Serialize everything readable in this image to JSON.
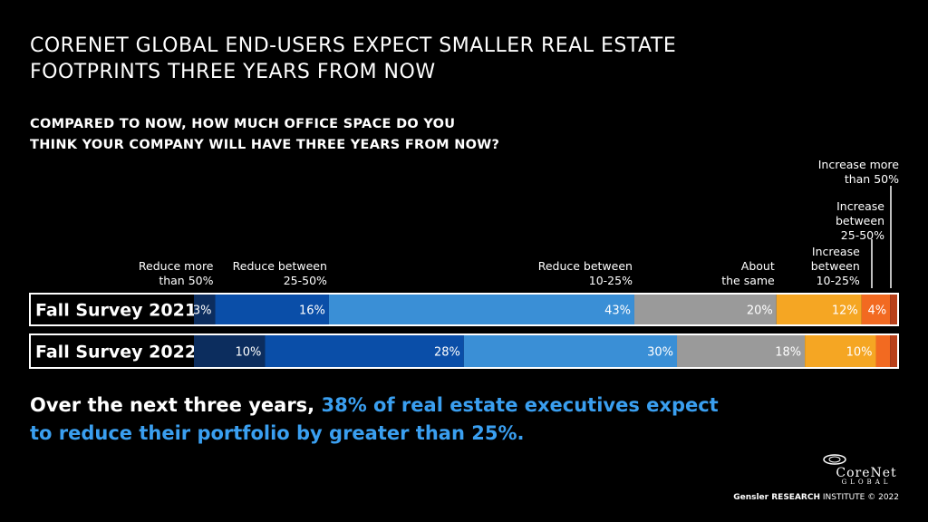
{
  "title": {
    "line1": "CORENET GLOBAL END-USERS EXPECT SMALLER REAL ESTATE",
    "line2": "FOOTPRINTS THREE YEARS FROM NOW"
  },
  "question": {
    "line1": "COMPARED TO NOW, HOW MUCH OFFICE SPACE DO YOU",
    "line2": "THINK YOUR COMPANY WILL HAVE THREE YEARS FROM NOW?"
  },
  "summary": {
    "prefix": "Over the next three years, ",
    "highlight_line1": "38% of real estate executives expect",
    "highlight_line2": "to reduce their portfolio by greater than 25%."
  },
  "logo": {
    "name": "CoreNet",
    "sub": "GLOBAL"
  },
  "credit": {
    "brand": "Gensler RESEARCH",
    "rest": " INSTITUTE © 2022"
  },
  "colors": {
    "background": "#000000",
    "highlight": "#3a9ff0"
  },
  "chart_data": {
    "type": "bar",
    "orientation": "horizontal-stacked",
    "title": "",
    "categories": [
      "Fall Survey 2021",
      "Fall Survey 2022"
    ],
    "series": [
      {
        "name": "Reduce more than 50%",
        "label_lines": [
          "Reduce more",
          "than 50%"
        ],
        "color": "#0c2d5e",
        "values": [
          3,
          10
        ],
        "data_labels": [
          "3%",
          "10%"
        ]
      },
      {
        "name": "Reduce between 25-50%",
        "label_lines": [
          "Reduce between",
          "25-50%"
        ],
        "color": "#0a4ea8",
        "values": [
          16,
          28
        ],
        "data_labels": [
          "16%",
          "28%"
        ]
      },
      {
        "name": "Reduce between 10-25%",
        "label_lines": [
          "Reduce between",
          "10-25%"
        ],
        "color": "#3a8fd6",
        "values": [
          43,
          30
        ],
        "data_labels": [
          "43%",
          "30%"
        ]
      },
      {
        "name": "About the same",
        "label_lines": [
          "About",
          "the same"
        ],
        "color": "#9a9a9a",
        "values": [
          20,
          18
        ],
        "data_labels": [
          "20%",
          "18%"
        ]
      },
      {
        "name": "Increase between 10-25%",
        "label_lines": [
          "Increase",
          "between",
          "10-25%"
        ],
        "color": "#f5a623",
        "values": [
          12,
          10
        ],
        "data_labels": [
          "12%",
          "10%"
        ]
      },
      {
        "name": "Increase between 25-50%",
        "label_lines": [
          "Increase",
          "between",
          "25-50%"
        ],
        "color": "#f26a21",
        "values": [
          4,
          2
        ],
        "data_labels": [
          "4%",
          ""
        ]
      },
      {
        "name": "Increase more than 50%",
        "label_lines": [
          "Increase more",
          "than 50%"
        ],
        "color": "#b8401a",
        "values": [
          1,
          1
        ],
        "data_labels": [
          "",
          ""
        ]
      }
    ],
    "unit": "%",
    "legend": "top, labels above segments"
  }
}
